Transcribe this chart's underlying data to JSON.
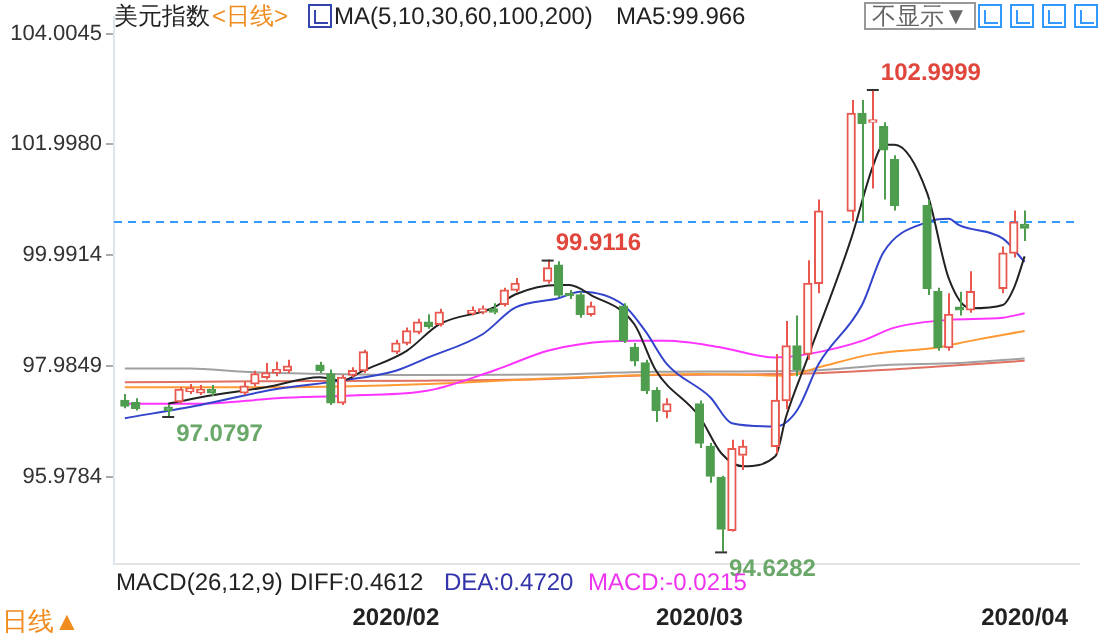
{
  "chart_data": {
    "type": "candlestick",
    "title": "美元指数",
    "annotations": [
      "<日线>",
      "MA(5,10,30,60,100,200)",
      "MA5:99.966",
      "不显示▼",
      "MACD(26,12,9)",
      "DIFF:0.4612",
      "DEA:0.4720",
      "MACD:-0.0215",
      "日线▲",
      {
        "text": "102.9999",
        "x": "2020-03-18",
        "y": 102.9999
      },
      {
        "text": "99.9116",
        "x": "2020-02-17",
        "y": 99.9116
      },
      {
        "text": "97.0797",
        "x": "2020-01-13",
        "y": 97.0797
      },
      {
        "text": "94.6282",
        "x": "2020-03-04",
        "y": 94.6282
      }
    ],
    "x": [
      "2020-01-09",
      "2020-01-10",
      "2020-01-13",
      "2020-01-14",
      "2020-01-15",
      "2020-01-16",
      "2020-01-17",
      "2020-01-20",
      "2020-01-21",
      "2020-01-22",
      "2020-01-23",
      "2020-01-24",
      "2020-01-27",
      "2020-01-28",
      "2020-01-29",
      "2020-01-30",
      "2020-01-31",
      "2020-02-03",
      "2020-02-04",
      "2020-02-05",
      "2020-02-06",
      "2020-02-07",
      "2020-02-10",
      "2020-02-11",
      "2020-02-12",
      "2020-02-13",
      "2020-02-14",
      "2020-02-17",
      "2020-02-18",
      "2020-02-19",
      "2020-02-20",
      "2020-02-21",
      "2020-02-24",
      "2020-02-25",
      "2020-02-26",
      "2020-02-27",
      "2020-02-28",
      "2020-03-02",
      "2020-03-03",
      "2020-03-04",
      "2020-03-05",
      "2020-03-06",
      "2020-03-09",
      "2020-03-10",
      "2020-03-11",
      "2020-03-12",
      "2020-03-13",
      "2020-03-16",
      "2020-03-17",
      "2020-03-18",
      "2020-03-19",
      "2020-03-20",
      "2020-03-23",
      "2020-03-24",
      "2020-03-25",
      "2020-03-26",
      "2020-03-27",
      "2020-03-30",
      "2020-03-31",
      "2020-04-01"
    ],
    "ohlc": [
      [
        97.36,
        97.48,
        97.22,
        97.26
      ],
      [
        97.32,
        97.4,
        97.18,
        97.22
      ],
      [
        97.24,
        97.28,
        97.0797,
        97.18
      ],
      [
        97.34,
        97.6,
        97.3,
        97.56
      ],
      [
        97.52,
        97.66,
        97.48,
        97.58
      ],
      [
        97.5,
        97.64,
        97.46,
        97.56
      ],
      [
        97.56,
        97.64,
        97.44,
        97.5
      ],
      [
        97.5,
        97.7,
        97.46,
        97.62
      ],
      [
        97.66,
        97.9,
        97.62,
        97.84
      ],
      [
        97.78,
        98.04,
        97.74,
        97.86
      ],
      [
        97.86,
        98.06,
        97.8,
        97.92
      ],
      [
        97.9,
        98.1,
        97.86,
        97.98
      ],
      [
        98.0,
        98.06,
        97.86,
        97.9
      ],
      [
        97.84,
        97.92,
        97.28,
        97.32
      ],
      [
        97.32,
        97.82,
        97.28,
        97.78
      ],
      [
        97.82,
        97.96,
        97.78,
        97.9
      ],
      [
        97.9,
        98.28,
        97.86,
        98.24
      ],
      [
        98.24,
        98.46,
        98.2,
        98.4
      ],
      [
        98.4,
        98.68,
        98.36,
        98.62
      ],
      [
        98.6,
        98.84,
        98.56,
        98.78
      ],
      [
        98.78,
        98.92,
        98.66,
        98.7
      ],
      [
        98.74,
        99.02,
        98.7,
        98.96
      ],
      [
        98.94,
        99.06,
        98.9,
        98.99
      ],
      [
        98.96,
        99.08,
        98.92,
        99.02
      ],
      [
        99.02,
        99.12,
        98.92,
        98.96
      ],
      [
        99.1,
        99.4,
        99.06,
        99.36
      ],
      [
        99.36,
        99.58,
        99.32,
        99.48
      ],
      [
        99.52,
        99.9116,
        99.48,
        99.76
      ],
      [
        99.81,
        99.88,
        99.23,
        99.27
      ],
      [
        99.3,
        99.36,
        99.2,
        99.26
      ],
      [
        99.27,
        99.33,
        98.86,
        98.92
      ],
      [
        98.92,
        99.15,
        98.88,
        99.07
      ],
      [
        99.07,
        99.12,
        98.4,
        98.44
      ],
      [
        98.32,
        98.4,
        97.98,
        98.08
      ],
      [
        98.04,
        98.1,
        97.48,
        97.54
      ],
      [
        97.54,
        97.6,
        96.97,
        97.18
      ],
      [
        97.16,
        97.4,
        97.04,
        97.3
      ],
      [
        97.3,
        97.36,
        96.5,
        96.59
      ],
      [
        96.53,
        96.59,
        95.87,
        95.99
      ],
      [
        95.97,
        96.0,
        94.6282,
        95.03
      ],
      [
        95.01,
        96.65,
        94.99,
        96.49
      ],
      [
        96.37,
        96.65,
        96.1,
        96.53
      ],
      [
        96.53,
        98.2,
        96.4,
        97.36
      ],
      [
        97.36,
        98.8,
        97.2,
        98.35
      ],
      [
        98.35,
        98.9,
        97.8,
        97.92
      ],
      [
        98.2,
        99.9,
        98.1,
        99.48
      ],
      [
        99.48,
        101.0,
        99.3,
        100.79
      ],
      [
        100.79,
        102.8,
        100.6,
        102.56
      ],
      [
        102.56,
        102.8,
        100.6,
        102.38
      ],
      [
        102.4,
        102.9999,
        101.2,
        102.44
      ],
      [
        102.32,
        102.4,
        101.0,
        101.9
      ],
      [
        101.72,
        101.8,
        100.8,
        100.89
      ],
      [
        100.89,
        101.0,
        99.27,
        99.39
      ],
      [
        99.33,
        99.4,
        98.26,
        98.32
      ],
      [
        98.32,
        99.3,
        98.26,
        98.92
      ],
      [
        99.05,
        99.33,
        98.9,
        99.0
      ],
      [
        99.0,
        99.7,
        98.95,
        99.33
      ],
      [
        99.39,
        100.15,
        99.3,
        100.03
      ],
      [
        100.03,
        100.8,
        99.95,
        100.59
      ],
      [
        100.55,
        100.8,
        100.25,
        100.48
      ]
    ],
    "colors": [
      "#4f9e4f",
      "#4f9e4f",
      "#4f9e4f",
      "#e8584f",
      "#e8584f",
      "#e8584f",
      "#4f9e4f",
      "#e8584f",
      "#e8584f",
      "#e8584f",
      "#e8584f",
      "#e8584f",
      "#4f9e4f",
      "#4f9e4f",
      "#e8584f",
      "#e8584f",
      "#e8584f",
      "#e8584f",
      "#e8584f",
      "#e8584f",
      "#4f9e4f",
      "#e8584f",
      "#e8584f",
      "#e8584f",
      "#4f9e4f",
      "#e8584f",
      "#e8584f",
      "#e8584f",
      "#4f9e4f",
      "#4f9e4f",
      "#4f9e4f",
      "#e8584f",
      "#4f9e4f",
      "#4f9e4f",
      "#4f9e4f",
      "#4f9e4f",
      "#e8584f",
      "#4f9e4f",
      "#4f9e4f",
      "#4f9e4f",
      "#e8584f",
      "#e8584f",
      "#e8584f",
      "#e8584f",
      "#4f9e4f",
      "#e8584f",
      "#e8584f",
      "#e8584f",
      "#4f9e4f",
      "#e8584f",
      "#4f9e4f",
      "#4f9e4f",
      "#4f9e4f",
      "#4f9e4f",
      "#e8584f",
      "#4f9e4f",
      "#e8584f",
      "#e8584f",
      "#e8584f",
      "#4f9e4f"
    ],
    "series": [
      {
        "type": "line",
        "color": "#222222",
        "x": [
          "2020-01-13",
          "2020-01-16",
          "2020-01-22",
          "2020-01-27",
          "2020-01-29",
          "2020-01-31",
          "2020-02-04",
          "2020-02-07",
          "2020-02-12",
          "2020-02-14",
          "2020-02-18",
          "2020-02-19",
          "2020-02-21",
          "2020-02-25",
          "2020-02-27",
          "2020-03-02",
          "2020-03-04",
          "2020-03-06",
          "2020-03-09",
          "2020-03-10",
          "2020-03-12",
          "2020-03-16",
          "2020-03-18",
          "2020-03-19",
          "2020-03-20",
          "2020-03-23",
          "2020-03-25",
          "2020-03-27",
          "2020-03-30",
          "2020-03-31",
          "2020-04-01"
        ],
        "values": [
          97.3,
          97.42,
          97.6,
          97.78,
          97.72,
          97.9,
          98.26,
          98.74,
          99.04,
          99.28,
          99.45,
          99.45,
          99.27,
          98.74,
          97.9,
          97.07,
          96.41,
          96.17,
          96.35,
          97.07,
          98.14,
          100.29,
          101.6,
          101.99,
          101.99,
          101.12,
          99.57,
          99.03,
          99.09,
          99.39,
          99.97
        ]
      },
      {
        "type": "line",
        "color": "#3344cc",
        "x": [
          "2020-01-09",
          "2020-01-16",
          "2020-01-23",
          "2020-01-29",
          "2020-02-03",
          "2020-02-06",
          "2020-02-11",
          "2020-02-14",
          "2020-02-18",
          "2020-02-20",
          "2020-02-24",
          "2020-02-26",
          "2020-02-28",
          "2020-03-03",
          "2020-03-05",
          "2020-03-09",
          "2020-03-11",
          "2020-03-13",
          "2020-03-17",
          "2020-03-19",
          "2020-03-23",
          "2020-03-25",
          "2020-03-26",
          "2020-03-30",
          "2020-04-01"
        ],
        "values": [
          97.04,
          97.28,
          97.57,
          97.72,
          97.9,
          98.14,
          98.56,
          99.04,
          99.21,
          99.33,
          99.09,
          98.62,
          98.02,
          97.42,
          96.95,
          96.89,
          97.18,
          98.02,
          99.09,
          100.05,
          100.59,
          100.65,
          100.53,
          100.29,
          99.87
        ]
      },
      {
        "type": "line",
        "color": "#ff33ff",
        "x": [
          "2020-01-09",
          "2020-01-16",
          "2020-01-23",
          "2020-01-30",
          "2020-02-06",
          "2020-02-12",
          "2020-02-17",
          "2020-02-20",
          "2020-02-25",
          "2020-02-28",
          "2020-03-04",
          "2020-03-09",
          "2020-03-12",
          "2020-03-17",
          "2020-03-20",
          "2020-03-25",
          "2020-03-30",
          "2020-04-01"
        ],
        "values": [
          97.3,
          97.3,
          97.4,
          97.45,
          97.54,
          97.9,
          98.26,
          98.38,
          98.44,
          98.44,
          98.32,
          98.14,
          98.2,
          98.44,
          98.68,
          98.82,
          98.86,
          98.94
        ]
      },
      {
        "type": "line",
        "color": "#ff9933",
        "x": [
          "2020-01-09",
          "2020-01-23",
          "2020-02-06",
          "2020-02-17",
          "2020-02-20",
          "2020-03-02",
          "2020-03-10",
          "2020-03-13",
          "2020-03-18",
          "2020-03-24",
          "2020-03-27",
          "2020-04-01"
        ],
        "values": [
          97.6,
          97.6,
          97.66,
          97.76,
          97.78,
          97.84,
          97.81,
          97.96,
          98.2,
          98.32,
          98.44,
          98.62
        ]
      },
      {
        "type": "line",
        "color": "#a0a0a0",
        "x": [
          "2020-01-09",
          "2020-01-15",
          "2020-01-20",
          "2020-01-28",
          "2020-02-06",
          "2020-02-17",
          "2020-02-27",
          "2020-03-12",
          "2020-03-19",
          "2020-03-26",
          "2020-04-01"
        ],
        "values": [
          97.94,
          97.94,
          97.88,
          97.84,
          97.82,
          97.83,
          97.88,
          97.9,
          98.0,
          98.04,
          98.12
        ]
      },
      {
        "type": "line",
        "color": "#e07060",
        "x": [
          "2020-01-09",
          "2020-01-23",
          "2020-02-06",
          "2020-02-17",
          "2020-02-27",
          "2020-03-12",
          "2020-03-23",
          "2020-04-01"
        ],
        "values": [
          97.69,
          97.71,
          97.72,
          97.75,
          97.82,
          97.85,
          97.96,
          98.08
        ]
      }
    ],
    "xlim": [
      "2020-01-08",
      "2020-04-06"
    ],
    "xticks": [
      {
        "value": "2020-02-03",
        "label": "2020/02"
      },
      {
        "value": "2020-03-02",
        "label": "2020/03"
      },
      {
        "value": "2020-04-01",
        "label": "2020/04"
      }
    ],
    "ylim": [
      94.4,
      104.3
    ],
    "yticks": [
      {
        "value": 95.9784,
        "label": "95.9784"
      },
      {
        "value": 97.9849,
        "label": "97.9849"
      },
      {
        "value": 99.9914,
        "label": "99.9914"
      },
      {
        "value": 101.998,
        "label": "101.9980"
      },
      {
        "value": 104.0045,
        "label": "104.0045"
      }
    ],
    "ref_lines": [
      {
        "axis": "y",
        "value": 100.59,
        "color": "#3399ff",
        "line_style": "dashed"
      }
    ],
    "marker": "none",
    "line_style": "solid",
    "grid": false,
    "legend": false
  }
}
